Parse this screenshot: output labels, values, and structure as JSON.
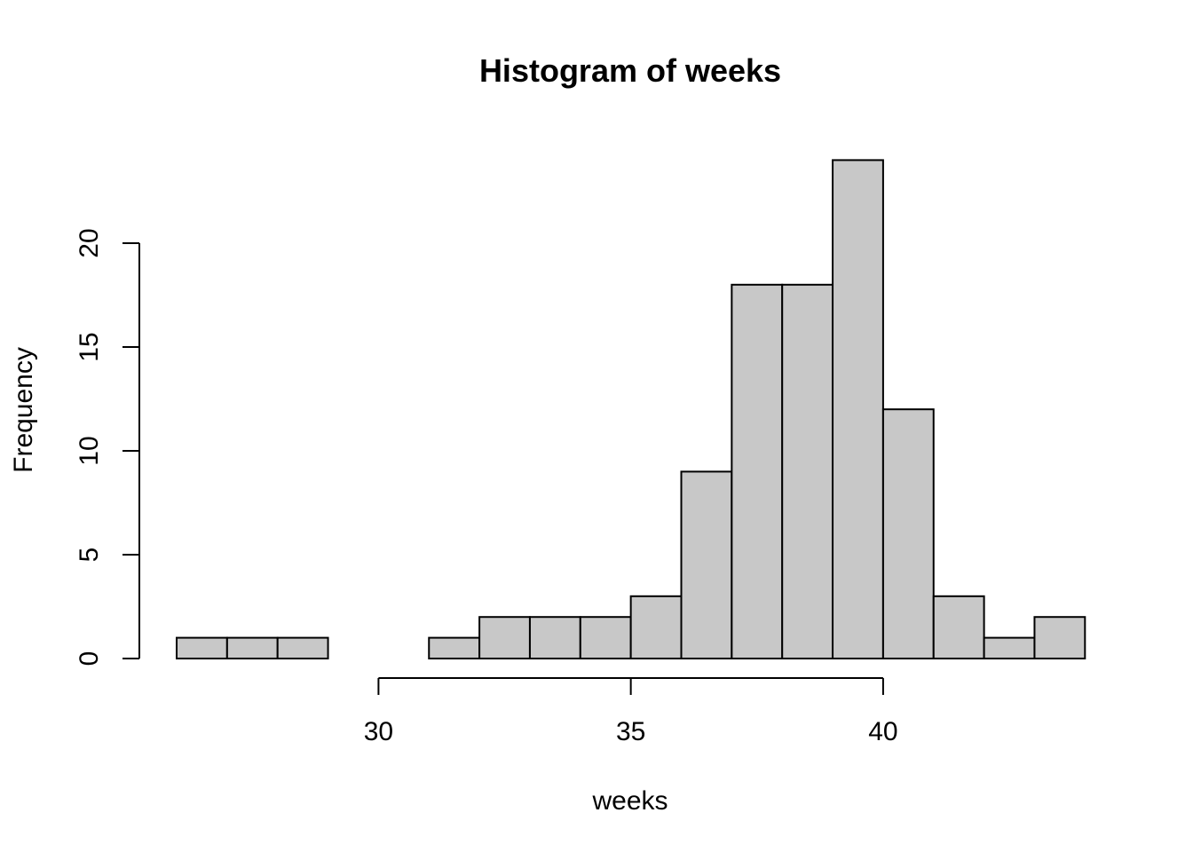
{
  "chart_data": {
    "type": "bar",
    "title": "Histogram of weeks",
    "xlabel": "weeks",
    "ylabel": "Frequency",
    "bin_edges": [
      26,
      27,
      28,
      29,
      30,
      31,
      32,
      33,
      34,
      35,
      36,
      37,
      38,
      39,
      40,
      41,
      42,
      43,
      44
    ],
    "values": [
      1,
      1,
      1,
      0,
      0,
      1,
      2,
      2,
      2,
      3,
      9,
      18,
      18,
      24,
      12,
      3,
      1,
      2
    ],
    "x_ticks": [
      30,
      35,
      40
    ],
    "y_ticks": [
      0,
      5,
      10,
      15,
      20
    ],
    "xlim": [
      26,
      44
    ],
    "ylim": [
      0,
      24
    ],
    "bar_color": "#c8c8c8",
    "grid": false,
    "legend": "none"
  }
}
